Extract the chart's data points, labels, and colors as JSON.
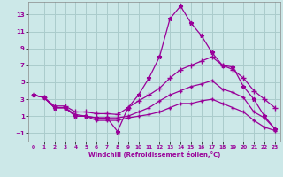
{
  "xlabel": "Windchill (Refroidissement éolien,°C)",
  "background_color": "#cce8e8",
  "grid_color": "#aacccc",
  "line_color": "#990099",
  "xlim": [
    -0.5,
    23.5
  ],
  "ylim": [
    -2,
    14.5
  ],
  "xticks": [
    0,
    1,
    2,
    3,
    4,
    5,
    6,
    7,
    8,
    9,
    10,
    11,
    12,
    13,
    14,
    15,
    16,
    17,
    18,
    19,
    20,
    21,
    22,
    23
  ],
  "yticks": [
    -1,
    1,
    3,
    5,
    7,
    9,
    11,
    13
  ],
  "line1_x": [
    0,
    1,
    2,
    3,
    4,
    5,
    6,
    7,
    8,
    9,
    10,
    11,
    12,
    13,
    14,
    15,
    16,
    17,
    18,
    19,
    20,
    21,
    22,
    23
  ],
  "line1_y": [
    3.5,
    3.2,
    2.0,
    2.0,
    1.0,
    1.0,
    0.8,
    0.8,
    -0.8,
    2.0,
    3.5,
    5.5,
    8.0,
    12.5,
    14.0,
    12.0,
    10.5,
    8.5,
    7.0,
    6.8,
    4.5,
    3.0,
    1.0,
    -0.5
  ],
  "line2_x": [
    0,
    1,
    2,
    3,
    4,
    5,
    6,
    7,
    8,
    9,
    10,
    11,
    12,
    13,
    14,
    15,
    16,
    17,
    18,
    19,
    20,
    21,
    22,
    23
  ],
  "line2_y": [
    3.5,
    3.2,
    2.2,
    2.2,
    1.5,
    1.5,
    1.3,
    1.3,
    1.2,
    2.0,
    2.8,
    3.5,
    4.3,
    5.5,
    6.5,
    7.0,
    7.5,
    8.0,
    7.0,
    6.5,
    5.5,
    4.0,
    3.0,
    2.0
  ],
  "line3_x": [
    0,
    1,
    2,
    3,
    4,
    5,
    6,
    7,
    8,
    9,
    10,
    11,
    12,
    13,
    14,
    15,
    16,
    17,
    18,
    19,
    20,
    21,
    22,
    23
  ],
  "line3_y": [
    3.5,
    3.2,
    2.0,
    2.0,
    1.2,
    1.0,
    0.8,
    0.8,
    0.8,
    1.0,
    1.5,
    2.0,
    2.8,
    3.5,
    4.0,
    4.5,
    4.8,
    5.2,
    4.2,
    3.8,
    3.2,
    1.5,
    0.8,
    -0.5
  ],
  "line4_x": [
    0,
    1,
    2,
    3,
    4,
    5,
    6,
    7,
    8,
    9,
    10,
    11,
    12,
    13,
    14,
    15,
    16,
    17,
    18,
    19,
    20,
    21,
    22,
    23
  ],
  "line4_y": [
    3.5,
    3.2,
    2.0,
    2.0,
    1.0,
    1.0,
    0.5,
    0.5,
    0.5,
    0.8,
    1.0,
    1.2,
    1.5,
    2.0,
    2.5,
    2.5,
    2.8,
    3.0,
    2.5,
    2.0,
    1.5,
    0.5,
    -0.3,
    -0.7
  ]
}
